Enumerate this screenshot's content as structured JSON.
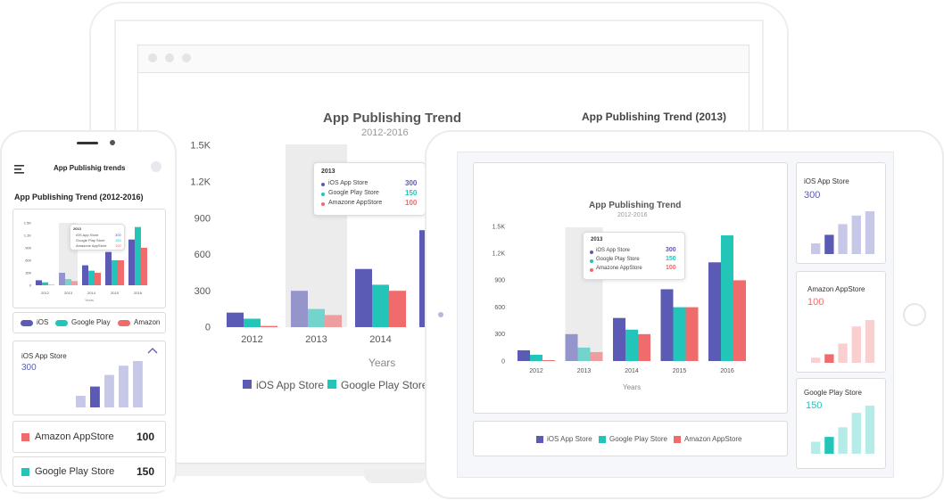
{
  "colors": {
    "ios": "#5b5bb5",
    "google": "#22c5b8",
    "amazon": "#f06b6b",
    "highlight": "#ececec"
  },
  "laptop": {
    "chart_left": {
      "title": "App Publishing Trend",
      "subtitle": "2012-2016",
      "xlabel": "Years",
      "yticks": [
        "0",
        "300",
        "600",
        "900",
        "1.2K",
        "1.5K"
      ],
      "legend": [
        "iOS App Store",
        "Google Play Store"
      ],
      "tooltip": {
        "year": "2013",
        "rows": [
          {
            "label": "iOS App Store",
            "value": "300"
          },
          {
            "label": "Google Play Store",
            "value": "150"
          },
          {
            "label": "Amazone AppStore",
            "value": "100"
          }
        ]
      }
    },
    "chart_right": {
      "title": "App Publishing Trend (2013)"
    }
  },
  "phone": {
    "header_title": "App Publishig trends",
    "menu_icon": "hamburger-icon",
    "section_title": "App Publishing Trend (2012-2016)",
    "mini_tooltip": {
      "year": "2013",
      "rows": [
        {
          "label": "iOS App Store",
          "value": "300"
        },
        {
          "label": "Google Play Store",
          "value": "150"
        },
        {
          "label": "Amazone AppStore",
          "value": "100"
        }
      ]
    },
    "mini_xlabel": "Years",
    "mini_yticks": [
      "0",
      "300",
      "600",
      "900",
      "1.2K",
      "1.5K"
    ],
    "legend": [
      "iOS",
      "Google Play",
      "Amazon"
    ],
    "ios_card": {
      "title": "iOS App Store",
      "value": "300"
    },
    "amazon_card": {
      "title": "Amazon AppStore",
      "value": "100"
    },
    "google_card": {
      "title": "Google Play Store",
      "value": "150"
    }
  },
  "tablet": {
    "chart": {
      "title": "App Publishing Trend",
      "subtitle": "2012-2016",
      "xlabel": "Years",
      "yticks": [
        "0",
        "300",
        "600",
        "900",
        "1.2K",
        "1.5K"
      ],
      "legend": [
        "iOS App Store",
        "Google Play Store",
        "Amazon AppStore"
      ],
      "tooltip": {
        "year": "2013",
        "rows": [
          {
            "label": "iOS App Store",
            "value": "300"
          },
          {
            "label": "Google Play Store",
            "value": "150"
          },
          {
            "label": "Amazone AppStore",
            "value": "100"
          }
        ]
      }
    },
    "cards": [
      {
        "title": "iOS App Store",
        "value": "300",
        "color": "#5b5bb5"
      },
      {
        "title": "Amazon AppStore",
        "value": "100",
        "color": "#f06b6b"
      },
      {
        "title": "Google Play Store",
        "value": "150",
        "color": "#22c5b8"
      }
    ]
  },
  "chart_data": {
    "type": "bar",
    "categories": [
      "2012",
      "2013",
      "2014",
      "2015",
      "2016"
    ],
    "series": [
      {
        "name": "iOS App Store",
        "values": [
          120,
          300,
          480,
          800,
          1100
        ]
      },
      {
        "name": "Google Play Store",
        "values": [
          70,
          150,
          350,
          600,
          1400
        ]
      },
      {
        "name": "Amazon AppStore",
        "values": [
          10,
          100,
          300,
          600,
          900
        ]
      }
    ],
    "title": "App Publishing Trend",
    "subtitle": "2012-2016",
    "xlabel": "Years",
    "ylim": [
      0,
      1500
    ],
    "highlight_category": "2013"
  },
  "sparklines": {
    "ios": [
      0.25,
      0.45,
      0.7,
      0.9,
      1.0
    ],
    "amazon": [
      0.12,
      0.2,
      0.45,
      0.85,
      1.0
    ],
    "google": [
      0.25,
      0.35,
      0.55,
      0.85,
      1.0
    ],
    "active_index": 1
  }
}
